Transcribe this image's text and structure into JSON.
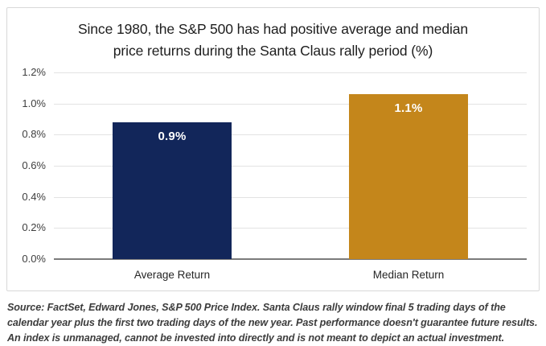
{
  "chart_data": {
    "type": "bar",
    "title": "Since 1980, the S&P 500 has had positive average and median price returns during the Santa Claus rally period (%)",
    "categories": [
      "Average Return",
      "Median Return"
    ],
    "values": [
      0.88,
      1.06
    ],
    "value_labels": [
      "0.9%",
      "1.1%"
    ],
    "bar_colors": [
      "#12265a",
      "#c4861b"
    ],
    "ylim": [
      0,
      1.2
    ],
    "ytick_values": [
      0,
      0.2,
      0.4,
      0.6,
      0.8,
      1.0,
      1.2
    ],
    "ytick_labels": [
      "0.0%",
      "0.2%",
      "0.4%",
      "0.6%",
      "0.8%",
      "1.0%",
      "1.2%"
    ],
    "grid": "horizontal",
    "legend": "none"
  },
  "colors": {
    "navy": "#12265a",
    "gold": "#c4861b",
    "gridline": "#e3e3e3",
    "axis_line": "#7b7b7b",
    "card_border": "#d8d8d8"
  },
  "footer": {
    "source_text": "Source: FactSet, Edward Jones, S&P 500 Price Index. Santa Claus rally window final 5 trading days of the calendar year plus the first two trading days of the new year. Past performance doesn't guarantee future results. An index is unmanaged, cannot be invested into directly and is not meant to depict an actual investment."
  }
}
